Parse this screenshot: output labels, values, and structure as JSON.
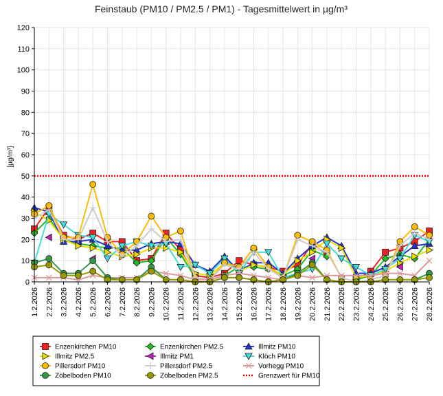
{
  "chart_data": {
    "type": "line",
    "title": "Feinstaub (PM10 / PM2.5 / PM1) -  Tagesmittelwert in µg/m³",
    "ylabel": "[µg/m³]",
    "xlabel": "",
    "ylim": [
      0,
      120
    ],
    "yticks": [
      0,
      10,
      20,
      30,
      40,
      50,
      60,
      70,
      80,
      90,
      100,
      110,
      120
    ],
    "grid": true,
    "legend_position": "bottom-left",
    "categories": [
      "1.2.2026",
      "2.2.2026",
      "3.2.2026",
      "4.2.2026",
      "5.2.2026",
      "6.2.2026",
      "7.2.2026",
      "8.2.2026",
      "9.2.2026",
      "10.2.2026",
      "11.2.2026",
      "12.2.2026",
      "13.2.2026",
      "14.2.2026",
      "15.2.2026",
      "16.2.2026",
      "17.2.2026",
      "18.2.2026",
      "19.2.2026",
      "20.2.2026",
      "21.2.2026",
      "22.2.2026",
      "23.2.2026",
      "24.2.2026",
      "25.2.2026",
      "26.2.2026",
      "27.2.2026",
      "28.2.2026"
    ],
    "series": [
      {
        "name": "Enzenkirchen PM10",
        "color": "#ee2222",
        "marker": "square",
        "values": [
          25,
          35,
          22,
          20,
          23,
          19,
          19,
          10,
          11,
          23,
          15,
          3,
          2,
          4,
          10,
          8,
          7,
          5,
          8,
          18,
          13,
          null,
          1,
          5,
          14,
          16,
          19,
          24
        ]
      },
      {
        "name": "Enzenkirchen PM2.5",
        "color": "#22bb22",
        "marker": "diamond",
        "values": [
          23,
          30,
          20,
          18,
          17,
          16,
          16,
          9,
          10,
          21,
          13,
          2,
          1,
          3,
          7,
          7,
          6,
          3,
          6,
          15,
          12,
          null,
          1,
          3,
          11,
          13,
          11,
          20
        ]
      },
      {
        "name": "Illmitz PM10",
        "color": "#2233cc",
        "marker": "triangle-up",
        "values": [
          35,
          33,
          19,
          19,
          20,
          17,
          15,
          15,
          18,
          19,
          18,
          8,
          5,
          12,
          5,
          9,
          9,
          4,
          11,
          17,
          21,
          17,
          4,
          4,
          7,
          12,
          17,
          18
        ]
      },
      {
        "name": "Illmitz PM2.5",
        "color": "#eedd00",
        "marker": "triangle-right",
        "values": [
          33,
          29,
          20,
          17,
          16,
          14,
          12,
          13,
          16,
          16,
          14,
          4,
          3,
          9,
          5,
          8,
          7,
          3,
          10,
          14,
          20,
          16,
          2,
          3,
          5,
          9,
          12,
          15
        ]
      },
      {
        "name": "Illmitz PM1",
        "color": "#bb22bb",
        "marker": "triangle-left",
        "values": [
          null,
          21,
          null,
          null,
          11,
          null,
          null,
          null,
          null,
          null,
          null,
          null,
          null,
          null,
          null,
          null,
          null,
          null,
          null,
          11,
          null,
          null,
          null,
          null,
          null,
          7,
          null,
          null
        ]
      },
      {
        "name": "Klöch PM10",
        "color": "#44dddd",
        "marker": "triangle-down",
        "values": [
          9,
          32,
          27,
          22,
          21,
          11,
          17,
          19,
          17,
          18,
          7,
          8,
          4,
          11,
          4,
          14,
          14,
          2,
          4,
          6,
          18,
          11,
          7,
          3,
          6,
          11,
          22,
          19
        ]
      },
      {
        "name": "Pillersdorf PM10",
        "color": "#ffbb00",
        "marker": "circle",
        "values": [
          32,
          36,
          21,
          21,
          46,
          21,
          13,
          19,
          31,
          21,
          24,
          2,
          1,
          9,
          7,
          16,
          7,
          2,
          22,
          19,
          15,
          2,
          0,
          1,
          3,
          19,
          26,
          22
        ]
      },
      {
        "name": "Pillersdorf PM2.5",
        "color": "#cccccc",
        "marker": "plus",
        "values": [
          30,
          34,
          20,
          20,
          35,
          19,
          12,
          17,
          25,
          19,
          20,
          2,
          1,
          8,
          6,
          14,
          6,
          2,
          20,
          17,
          14,
          2,
          0,
          1,
          3,
          17,
          23,
          20
        ]
      },
      {
        "name": "Vorhegg PM10",
        "color": "#dd9999",
        "marker": "cross",
        "values": [
          2,
          2,
          2,
          1,
          3,
          2,
          2,
          2,
          5,
          4,
          3,
          1,
          1,
          3,
          4,
          3,
          2,
          1,
          3,
          2,
          3,
          3,
          3,
          3,
          4,
          4,
          3,
          10
        ]
      },
      {
        "name": "Zöbelboden PM10",
        "color": "#339944",
        "marker": "circle",
        "values": [
          9,
          11,
          4,
          4,
          10,
          2,
          1,
          1,
          7,
          1,
          1,
          0,
          0,
          2,
          2,
          1,
          0,
          1,
          4,
          9,
          1,
          0,
          0,
          0,
          1,
          1,
          1,
          4
        ]
      },
      {
        "name": "Zöbelboden PM2.5",
        "color": "#999900",
        "marker": "circle",
        "values": [
          7,
          8,
          3,
          3,
          5,
          1,
          1,
          1,
          5,
          1,
          1,
          0,
          0,
          2,
          2,
          1,
          0,
          1,
          3,
          8,
          1,
          0,
          0,
          0,
          1,
          1,
          1,
          2
        ]
      },
      {
        "name": "Grenzwert für PM10",
        "color": "#ee0000",
        "marker": "none",
        "constant": 50,
        "dashed": true
      }
    ]
  }
}
